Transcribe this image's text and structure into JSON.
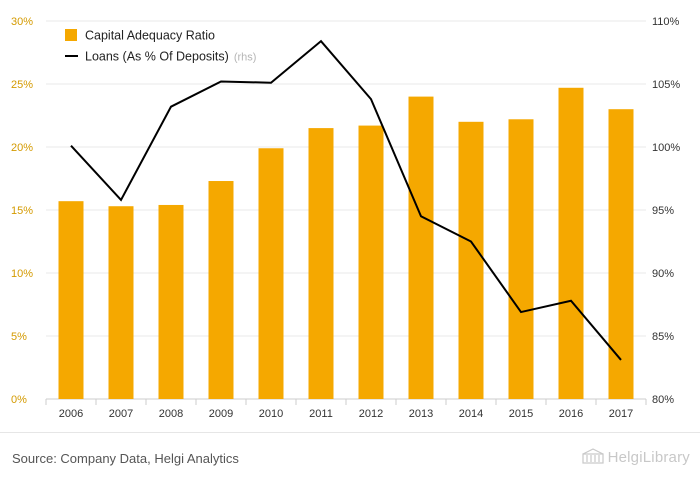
{
  "chart_data": {
    "type": "bar",
    "categories": [
      "2006",
      "2007",
      "2008",
      "2009",
      "2010",
      "2011",
      "2012",
      "2013",
      "2014",
      "2015",
      "2016",
      "2017"
    ],
    "series": [
      {
        "name": "Capital Adequacy Ratio",
        "type": "bar",
        "axis": "left",
        "color": "#f5a800",
        "values": [
          15.7,
          15.3,
          15.4,
          17.3,
          19.9,
          21.5,
          21.7,
          24.0,
          22.0,
          22.2,
          24.7,
          23.0
        ]
      },
      {
        "name": "Loans (As % Of Deposits)",
        "name_suffix": "(rhs)",
        "type": "line",
        "axis": "right",
        "color": "#000000",
        "values": [
          100.1,
          95.8,
          103.2,
          105.2,
          105.1,
          108.4,
          103.8,
          94.5,
          92.5,
          86.9,
          87.8,
          83.1
        ]
      }
    ],
    "y_left": {
      "ylim": [
        0,
        30
      ],
      "ticks": [
        0,
        5,
        10,
        15,
        20,
        25,
        30
      ],
      "tick_labels": [
        "0%",
        "5%",
        "10%",
        "15%",
        "20%",
        "25%",
        "30%"
      ]
    },
    "y_right": {
      "ylim": [
        80,
        110
      ],
      "ticks": [
        80,
        85,
        90,
        95,
        100,
        105,
        110
      ],
      "tick_labels": [
        "80%",
        "85%",
        "90%",
        "95%",
        "100%",
        "105%",
        "110%"
      ]
    },
    "grid": "horizontal",
    "legend_position": "top-left"
  },
  "footer": {
    "source": "Source: Company Data, Helgi Analytics",
    "brand": "HelgiLibrary",
    "brand_icon": "building-logo-icon"
  }
}
